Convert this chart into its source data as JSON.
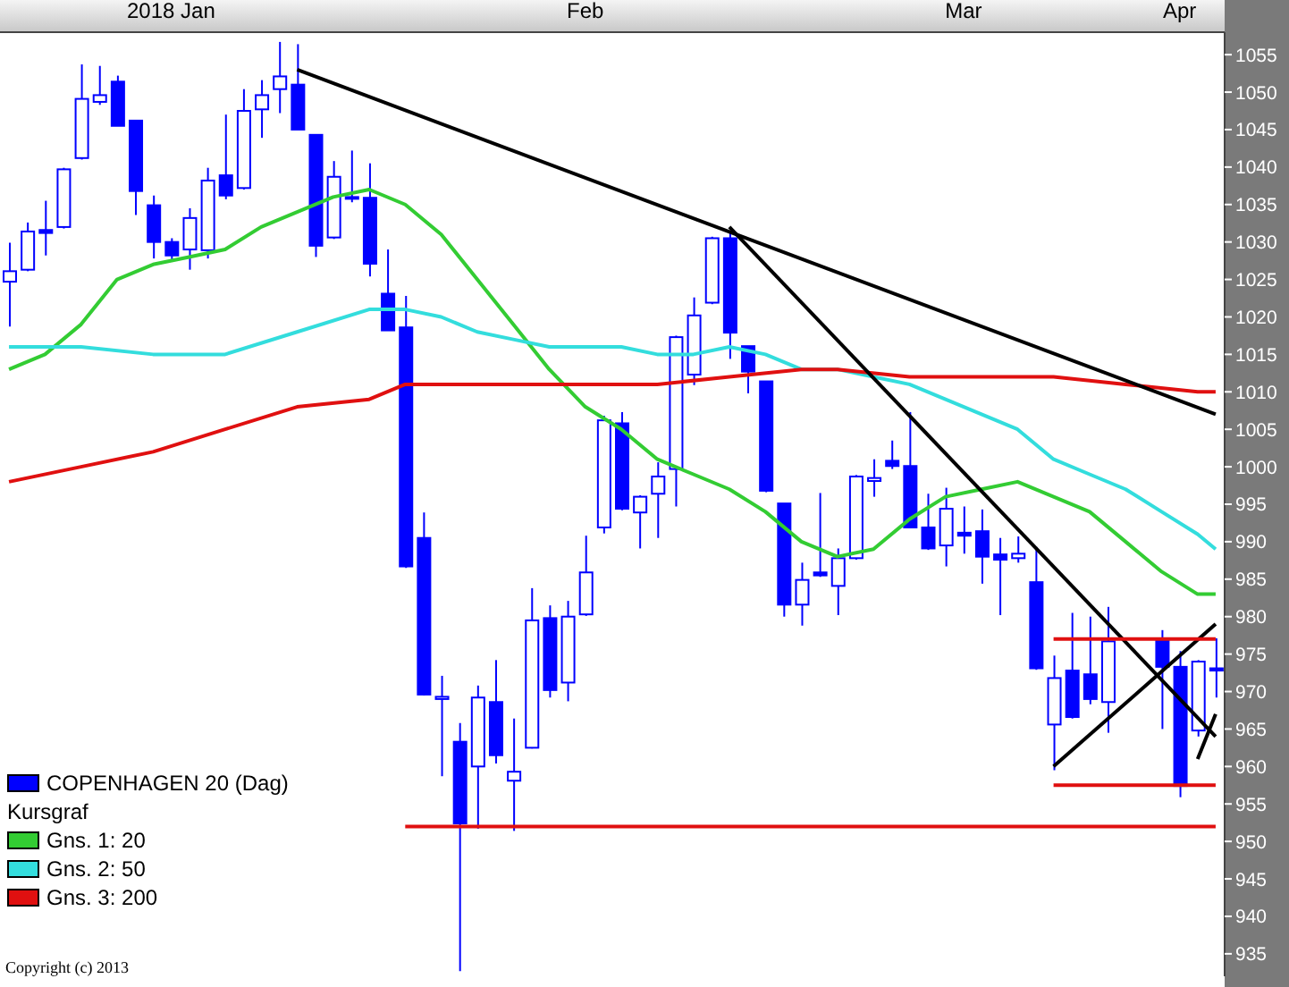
{
  "chart_data": {
    "type": "candlestick",
    "categories": [
      null,
      null,
      null,
      null,
      null,
      null,
      null,
      null,
      null,
      "2018 Jan",
      null,
      null,
      null,
      null,
      null,
      null,
      null,
      null,
      null,
      null,
      null,
      null,
      null,
      null,
      null,
      null,
      null,
      null,
      null,
      null,
      null,
      null,
      "Feb",
      null,
      null,
      null,
      null,
      null,
      null,
      null,
      null,
      null,
      null,
      null,
      null,
      null,
      null,
      null,
      null,
      null,
      null,
      null,
      null,
      "Mar",
      null,
      null,
      null,
      null,
      null,
      null,
      null,
      null,
      null,
      null,
      null,
      "Apr",
      null,
      null
    ],
    "ylim": [
      932,
      1058
    ],
    "yticks": [
      935,
      940,
      945,
      950,
      955,
      960,
      965,
      970,
      975,
      980,
      985,
      990,
      995,
      1000,
      1005,
      1010,
      1015,
      1020,
      1025,
      1030,
      1035,
      1040,
      1045,
      1050,
      1055
    ],
    "grid": false,
    "legend": "bottom left",
    "legend_title": "Kursgraf",
    "annotations": [
      "Copyright (c) 2013"
    ],
    "series": [
      {
        "name": "COPENHAGEN 20 (Dag)",
        "color": "#0000ff",
        "ohlc": [
          [
            1024.7,
            1029.9,
            1018.7,
            1026.1
          ],
          [
            1026.3,
            1032.6,
            1026.1,
            1031.4
          ],
          [
            1031.6,
            1035.5,
            1028.2,
            1031.2
          ],
          [
            1032.0,
            1039.9,
            1031.8,
            1039.7
          ],
          [
            1041.2,
            1053.7,
            1041.0,
            1049.1
          ],
          [
            1048.7,
            1053.5,
            1048.3,
            1049.6
          ],
          [
            1051.4,
            1052.2,
            1045.5,
            1045.5
          ],
          [
            1046.2,
            1046.2,
            1033.6,
            1036.8
          ],
          [
            1034.9,
            1036.2,
            1027.8,
            1030.0
          ],
          [
            1030.0,
            1030.5,
            1027.4,
            1028.2
          ],
          [
            1029.0,
            1034.5,
            1026.3,
            1033.2
          ],
          [
            1028.9,
            1039.9,
            1027.8,
            1038.2
          ],
          [
            1038.9,
            1047.0,
            1035.7,
            1036.2
          ],
          [
            1037.2,
            1050.4,
            1037.0,
            1047.5
          ],
          [
            1047.7,
            1051.6,
            1043.9,
            1049.6
          ],
          [
            1050.4,
            1056.7,
            1047.2,
            1052.1
          ],
          [
            1051.0,
            1056.4,
            1045.0,
            1045.0
          ],
          [
            1044.3,
            1044.3,
            1028.0,
            1029.5
          ],
          [
            1030.6,
            1040.8,
            1030.4,
            1038.7
          ],
          [
            1036.0,
            1042.2,
            1035.3,
            1035.8
          ],
          [
            1035.9,
            1040.5,
            1025.4,
            1027.1
          ],
          [
            1023.1,
            1029.0,
            1018.2,
            1018.2
          ],
          [
            1018.6,
            1022.8,
            986.5,
            986.7
          ],
          [
            990.5,
            993.9,
            969.5,
            969.6
          ],
          [
            969.0,
            972.1,
            958.7,
            969.3
          ],
          [
            963.3,
            965.8,
            932.7,
            952.4
          ],
          [
            960.0,
            970.8,
            951.7,
            969.2
          ],
          [
            968.6,
            974.2,
            960.4,
            961.5
          ],
          [
            958.1,
            966.4,
            951.4,
            959.3
          ],
          [
            962.5,
            983.8,
            962.4,
            979.5
          ],
          [
            979.8,
            981.5,
            969.2,
            970.2
          ],
          [
            971.2,
            982.1,
            968.7,
            980.0
          ],
          [
            980.3,
            990.8,
            980.1,
            985.9
          ],
          [
            991.9,
            1006.8,
            991.1,
            1006.2
          ],
          [
            1005.8,
            1007.3,
            994.2,
            994.4
          ],
          [
            993.9,
            996.2,
            989.1,
            996.0
          ],
          [
            996.4,
            1000.6,
            990.5,
            998.7
          ],
          [
            999.7,
            1017.5,
            994.7,
            1017.3
          ],
          [
            1012.3,
            1022.6,
            1010.9,
            1020.2
          ],
          [
            1021.9,
            1030.7,
            1021.7,
            1030.5
          ],
          [
            1030.5,
            1031.3,
            1014.4,
            1017.9
          ],
          [
            1016.1,
            1016.1,
            1009.8,
            1012.7
          ],
          [
            1011.4,
            1011.4,
            996.6,
            996.8
          ],
          [
            995.1,
            995.1,
            980.0,
            981.6
          ],
          [
            981.6,
            987.2,
            978.8,
            984.9
          ],
          [
            985.9,
            996.5,
            985.3,
            985.5
          ],
          [
            984.1,
            989.1,
            980.2,
            987.8
          ],
          [
            987.8,
            998.9,
            987.6,
            998.7
          ],
          [
            998.1,
            1001.0,
            996.0,
            998.5
          ],
          [
            1000.8,
            1003.5,
            999.7,
            1000.1
          ],
          [
            1000.1,
            1007.3,
            991.8,
            991.9
          ],
          [
            991.9,
            996.4,
            988.9,
            989.1
          ],
          [
            989.5,
            997.2,
            986.7,
            994.4
          ],
          [
            991.2,
            994.7,
            988.4,
            990.8
          ],
          [
            991.4,
            994.3,
            984.4,
            988.0
          ],
          [
            988.3,
            990.5,
            980.2,
            987.6
          ],
          [
            987.8,
            990.7,
            987.2,
            988.4
          ],
          [
            984.6,
            989.3,
            972.9,
            973.1
          ],
          [
            965.6,
            974.8,
            959.5,
            971.8
          ],
          [
            972.8,
            980.5,
            966.4,
            966.6
          ],
          [
            972.3,
            980.0,
            968.3,
            969.0
          ],
          [
            968.6,
            981.3,
            964.5,
            976.7
          ],
          null,
          null,
          [
            977.1,
            978.2,
            965.0,
            973.3
          ],
          [
            973.3,
            975.4,
            955.9,
            957.4
          ],
          [
            964.8,
            974.2,
            964.0,
            974.0
          ],
          [
            973.1,
            977.1,
            969.2,
            972.8
          ]
        ]
      },
      {
        "name": "Gns. 1: 20",
        "type": "line",
        "color": "#33cc33",
        "values": [
          1013,
          null,
          1015,
          null,
          1019,
          null,
          1025,
          null,
          1027,
          null,
          1028,
          null,
          1029,
          null,
          1032,
          null,
          1034,
          null,
          1036,
          null,
          1037,
          null,
          1035,
          null,
          1031,
          null,
          1025,
          null,
          1019,
          null,
          1013,
          null,
          1008,
          null,
          1005,
          null,
          1001,
          null,
          999,
          null,
          997,
          null,
          994,
          null,
          990,
          null,
          988,
          null,
          989,
          null,
          993,
          null,
          996,
          null,
          997,
          null,
          998,
          null,
          996,
          null,
          994,
          null,
          990,
          null,
          986,
          null,
          983,
          983
        ]
      },
      {
        "name": "Gns. 2: 50",
        "type": "line",
        "color": "#33dddd",
        "values": [
          1016,
          null,
          null,
          null,
          1016,
          null,
          null,
          null,
          1015,
          null,
          null,
          null,
          1015,
          null,
          null,
          null,
          1018,
          null,
          null,
          null,
          1021,
          null,
          1021,
          null,
          1020,
          null,
          1018,
          null,
          1017,
          null,
          1016,
          null,
          1016,
          null,
          1016,
          null,
          1015,
          null,
          1015,
          null,
          1016,
          null,
          1015,
          null,
          1013,
          null,
          1013,
          null,
          1012,
          null,
          1011,
          null,
          1009,
          null,
          1007,
          null,
          1005,
          null,
          1001,
          null,
          999,
          null,
          997,
          null,
          994,
          null,
          991,
          989
        ]
      },
      {
        "name": "Gns. 3: 200",
        "type": "line",
        "color": "#e01010",
        "values": [
          998,
          null,
          null,
          null,
          1000,
          null,
          null,
          null,
          1002,
          null,
          null,
          null,
          1005,
          null,
          null,
          null,
          1008,
          null,
          null,
          null,
          1009,
          null,
          1011,
          null,
          1011,
          null,
          null,
          null,
          null,
          null,
          1011,
          null,
          null,
          null,
          null,
          null,
          1011,
          null,
          null,
          null,
          1012,
          null,
          null,
          null,
          1013,
          null,
          1013,
          null,
          null,
          null,
          1012,
          null,
          null,
          null,
          1012,
          null,
          null,
          null,
          1012,
          null,
          null,
          null,
          1011,
          null,
          null,
          null,
          1010,
          1010
        ]
      },
      {
        "type": "line",
        "color": "#000000",
        "values": [
          null,
          null,
          null,
          null,
          null,
          null,
          null,
          null,
          null,
          null,
          null,
          null,
          null,
          null,
          null,
          null,
          1053,
          null,
          null,
          null,
          null,
          null,
          null,
          null,
          null,
          null,
          null,
          null,
          null,
          null,
          null,
          null,
          null,
          null,
          null,
          null,
          null,
          null,
          null,
          null,
          null,
          null,
          null,
          null,
          null,
          null,
          null,
          null,
          null,
          null,
          null,
          null,
          null,
          null,
          null,
          null,
          null,
          null,
          null,
          null,
          null,
          null,
          null,
          null,
          null,
          null,
          null,
          1007
        ]
      },
      {
        "type": "line",
        "color": "#000000",
        "values": [
          null,
          null,
          null,
          null,
          null,
          null,
          null,
          null,
          null,
          null,
          null,
          null,
          null,
          null,
          null,
          null,
          null,
          null,
          null,
          null,
          null,
          null,
          null,
          null,
          null,
          null,
          null,
          null,
          null,
          null,
          null,
          null,
          null,
          null,
          null,
          null,
          null,
          null,
          null,
          null,
          1032,
          null,
          null,
          null,
          null,
          null,
          null,
          null,
          null,
          null,
          null,
          null,
          null,
          null,
          null,
          null,
          null,
          null,
          null,
          null,
          null,
          null,
          null,
          null,
          null,
          null,
          null,
          964
        ]
      },
      {
        "type": "line",
        "color": "#000000",
        "values": [
          null,
          null,
          null,
          null,
          null,
          null,
          null,
          null,
          null,
          null,
          null,
          null,
          null,
          null,
          null,
          null,
          null,
          null,
          null,
          null,
          null,
          null,
          null,
          null,
          null,
          null,
          null,
          null,
          null,
          null,
          null,
          null,
          null,
          null,
          null,
          null,
          null,
          null,
          null,
          null,
          null,
          null,
          null,
          null,
          null,
          null,
          null,
          null,
          null,
          null,
          null,
          null,
          null,
          null,
          null,
          null,
          null,
          null,
          960,
          null,
          null,
          null,
          null,
          null,
          null,
          null,
          null,
          979
        ]
      },
      {
        "type": "line",
        "color": "#000000",
        "values": [
          null,
          null,
          null,
          null,
          null,
          null,
          null,
          null,
          null,
          null,
          null,
          null,
          null,
          null,
          null,
          null,
          null,
          null,
          null,
          null,
          null,
          null,
          null,
          null,
          null,
          null,
          null,
          null,
          null,
          null,
          null,
          null,
          null,
          null,
          null,
          null,
          null,
          null,
          null,
          null,
          null,
          null,
          null,
          null,
          null,
          null,
          null,
          null,
          null,
          null,
          null,
          null,
          null,
          null,
          null,
          null,
          null,
          null,
          null,
          null,
          null,
          null,
          null,
          null,
          null,
          null,
          961,
          967
        ]
      },
      {
        "type": "line",
        "color": "#e01010",
        "values": [
          null,
          null,
          null,
          null,
          null,
          null,
          null,
          null,
          null,
          null,
          null,
          null,
          null,
          null,
          null,
          null,
          null,
          null,
          null,
          null,
          null,
          null,
          952,
          null,
          null,
          null,
          null,
          null,
          null,
          null,
          null,
          null,
          null,
          null,
          null,
          null,
          null,
          null,
          null,
          null,
          null,
          null,
          null,
          null,
          null,
          null,
          null,
          null,
          null,
          null,
          null,
          null,
          null,
          null,
          null,
          null,
          null,
          null,
          null,
          null,
          null,
          null,
          null,
          null,
          null,
          null,
          null,
          952
        ]
      },
      {
        "type": "line",
        "color": "#e01010",
        "values": [
          null,
          null,
          null,
          null,
          null,
          null,
          null,
          null,
          null,
          null,
          null,
          null,
          null,
          null,
          null,
          null,
          null,
          null,
          null,
          null,
          null,
          null,
          null,
          null,
          null,
          null,
          null,
          null,
          null,
          null,
          null,
          null,
          null,
          null,
          null,
          null,
          null,
          null,
          null,
          null,
          null,
          null,
          null,
          null,
          null,
          null,
          null,
          null,
          null,
          null,
          null,
          null,
          null,
          null,
          null,
          null,
          null,
          null,
          977,
          null,
          null,
          null,
          null,
          null,
          null,
          null,
          null,
          977
        ]
      },
      {
        "type": "line",
        "color": "#e01010",
        "values": [
          null,
          null,
          null,
          null,
          null,
          null,
          null,
          null,
          null,
          null,
          null,
          null,
          null,
          null,
          null,
          null,
          null,
          null,
          null,
          null,
          null,
          null,
          null,
          null,
          null,
          null,
          null,
          null,
          null,
          null,
          null,
          null,
          null,
          null,
          null,
          null,
          null,
          null,
          null,
          null,
          null,
          null,
          null,
          null,
          null,
          null,
          null,
          null,
          null,
          null,
          null,
          null,
          null,
          null,
          null,
          null,
          null,
          null,
          957.5,
          null,
          null,
          null,
          null,
          null,
          null,
          null,
          null,
          957.5
        ]
      }
    ]
  }
}
